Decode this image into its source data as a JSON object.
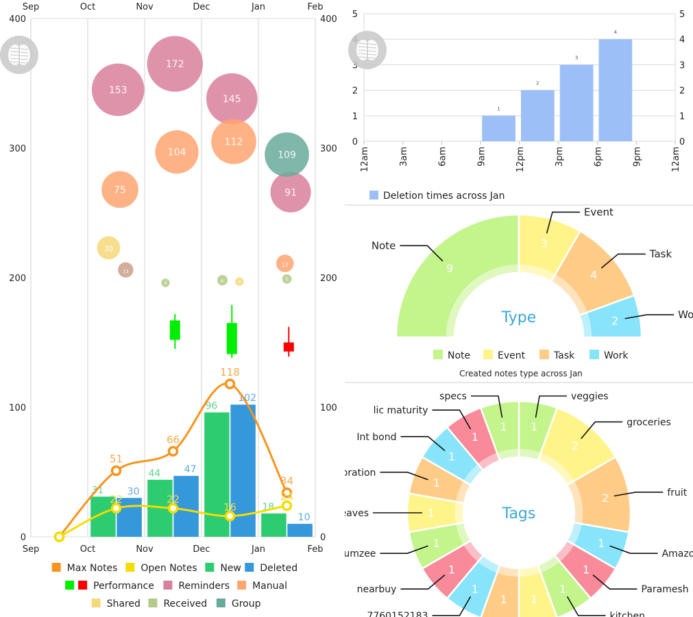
{
  "chart_data": [
    {
      "type": "combo",
      "x_axis": {
        "ticks": [
          "Sep",
          "Oct",
          "Nov",
          "Dec",
          "Jan",
          "Feb"
        ]
      },
      "y_axis": {
        "range": [
          0,
          400
        ],
        "ticks": [
          "0",
          "100",
          "200",
          "300",
          "400"
        ]
      },
      "grid": "vertical",
      "legend_placement": "bottom",
      "legend": [
        {
          "name": "Max Notes",
          "colors": [
            "#f7941d"
          ]
        },
        {
          "name": "Open Notes",
          "colors": [
            "#f5dc00"
          ]
        },
        {
          "name": "New",
          "colors": [
            "#2ecc71"
          ]
        },
        {
          "name": "Deleted",
          "colors": [
            "#3498db"
          ]
        },
        {
          "name": "Performance",
          "colors": [
            "#00ee00",
            "#ff0000"
          ]
        },
        {
          "name": "Reminders",
          "colors": [
            "#d9809c"
          ]
        },
        {
          "name": "Manual",
          "colors": [
            "#ffa570"
          ]
        },
        {
          "name": "Shared",
          "colors": [
            "#f5d87a"
          ]
        },
        {
          "name": "Received",
          "colors": [
            "#b5c98a"
          ]
        },
        {
          "name": "Group",
          "colors": [
            "#6aaa9c"
          ]
        }
      ],
      "bars": {
        "categories": [
          "Oct",
          "Nov",
          "Dec",
          "Jan"
        ],
        "series": [
          {
            "name": "New",
            "color": "#2ecc71",
            "label_color": "#5fd38d",
            "values": [
              31,
              44,
              96,
              18
            ]
          },
          {
            "name": "Deleted",
            "color": "#3498db",
            "label_color": "#5aa9e0",
            "values": [
              30,
              47,
              102,
              10
            ]
          }
        ]
      },
      "lines": {
        "x": [
          "Sep",
          "Oct",
          "Nov",
          "Dec",
          "Jan"
        ],
        "series": [
          {
            "name": "Max Notes",
            "color": "#f7941d",
            "label_color": "#f5a94a",
            "values": [
              0,
              51,
              66,
              118,
              34
            ]
          },
          {
            "name": "Open Notes",
            "color": "#f5dc00",
            "label_color": "#f2d94a",
            "values": [
              0,
              22,
              22,
              16,
              24
            ]
          }
        ]
      },
      "candles": {
        "name": "Performance",
        "points": [
          {
            "x": "Nov 16",
            "open": 152,
            "close": 167,
            "high": 172,
            "low": 145,
            "color": "#00ee00"
          },
          {
            "x": "Dec 16",
            "open": 141,
            "close": 165,
            "high": 179,
            "low": 138,
            "color": "#00ee00"
          },
          {
            "x": "Jan 16",
            "open": 150,
            "close": 143,
            "high": 162,
            "low": 139,
            "color": "#ff0000"
          }
        ]
      },
      "bubbles": [
        {
          "series": "Reminders",
          "x": "Oct 16",
          "y": 345,
          "size": 153,
          "color": "#d9809c"
        },
        {
          "series": "Reminders",
          "x": "Nov 16",
          "y": 365,
          "size": 172,
          "color": "#d9809c"
        },
        {
          "series": "Reminders",
          "x": "Dec 16",
          "y": 338,
          "size": 145,
          "color": "#d9809c"
        },
        {
          "series": "Reminders",
          "x": "Jan 17",
          "y": 266,
          "size": 91,
          "color": "#d9809c"
        },
        {
          "series": "Manual",
          "x": "Oct 17",
          "y": 268,
          "size": 75,
          "color": "#ffa570"
        },
        {
          "series": "Manual",
          "x": "Nov 17",
          "y": 297,
          "size": 104,
          "color": "#ffa570"
        },
        {
          "series": "Manual",
          "x": "Dec 17",
          "y": 305,
          "size": 112,
          "color": "#ffa570"
        },
        {
          "series": "Manual",
          "x": "Jan 14",
          "y": 211,
          "size": 17,
          "color": "#ffa570"
        },
        {
          "series": "Group",
          "x": "Jan 15",
          "y": 295,
          "size": 109,
          "color": "#6aaa9c"
        },
        {
          "series": "Shared",
          "x": "Oct 11",
          "y": 223,
          "size": 30,
          "color": "#f5d87a"
        },
        {
          "series": "Received",
          "x": "Oct 20",
          "y": 206,
          "size": 13,
          "color": "#c9a088"
        },
        {
          "series": "Received",
          "x": "Nov 11",
          "y": 196,
          "size": 4,
          "color": "#b5c98a"
        },
        {
          "series": "Received",
          "x": "Dec 11",
          "y": 198,
          "size": 6,
          "color": "#b5c98a"
        },
        {
          "series": "Shared",
          "x": "Dec 20",
          "y": 197,
          "size": 4,
          "color": "#f5d87a"
        },
        {
          "series": "Received",
          "x": "Jan 15",
          "y": 199,
          "size": 5,
          "color": "#b5c98a"
        }
      ]
    },
    {
      "type": "bar",
      "x_axis": {
        "ticks": [
          "12am",
          "3am",
          "6am",
          "9am",
          "12pm",
          "3pm",
          "6pm",
          "9pm",
          "12am"
        ]
      },
      "y_axis": {
        "range": [
          0,
          5
        ],
        "ticks": [
          "0",
          "1",
          "2",
          "3",
          "4",
          "5"
        ]
      },
      "grid": "horizontal",
      "color": "#9dbff7",
      "legend": "Deletion times across Jan",
      "legend_placement": "bottom-left",
      "bars": [
        {
          "from": "9am",
          "to": "12pm",
          "value": 1
        },
        {
          "from": "12pm",
          "to": "3pm",
          "value": 2
        },
        {
          "from": "3pm",
          "to": "6pm",
          "value": 3
        },
        {
          "from": "6pm",
          "to": "9pm",
          "value": 4
        }
      ]
    },
    {
      "type": "pie",
      "variant": "half-donut",
      "center_label": "Type",
      "caption": "Created notes type across Jan",
      "legend_placement": "bottom",
      "slices": [
        {
          "label": "Note",
          "value": 9,
          "color": "#c4f48c"
        },
        {
          "label": "Event",
          "value": 3,
          "color": "#fff48a"
        },
        {
          "label": "Task",
          "value": 4,
          "color": "#ffcc88"
        },
        {
          "label": "Work",
          "value": 2,
          "color": "#88e4fa"
        }
      ]
    },
    {
      "type": "pie",
      "variant": "donut",
      "center_label": "Tags",
      "slices": [
        {
          "label": "veggies",
          "value": 1,
          "color": "#c4f48c"
        },
        {
          "label": "groceries",
          "value": 2,
          "color": "#fff48a"
        },
        {
          "label": "fruit",
          "value": 2,
          "color": "#ffcc88"
        },
        {
          "label": "Amazon A",
          "value": 1,
          "color": "#88e4fa"
        },
        {
          "label": "Paramesh",
          "value": 1,
          "color": "#f98a99"
        },
        {
          "label": "kitchen",
          "value": 1,
          "color": "#c4f48c"
        },
        {
          "label": "",
          "value": 1,
          "color": "#fff48a"
        },
        {
          "label": "",
          "value": 1,
          "color": "#ffcc88"
        },
        {
          "label": "7760152183",
          "value": 1,
          "color": "#88e4fa"
        },
        {
          "label": "nearbuy",
          "value": 1,
          "color": "#f98a99"
        },
        {
          "label": "Mumzee",
          "value": 1,
          "color": "#c4f48c"
        },
        {
          "label": "paid leaves",
          "value": 1,
          "color": "#fff48a"
        },
        {
          "label": "celebration",
          "value": 1,
          "color": "#ffcc88"
        },
        {
          "label": "Int bond",
          "value": 1,
          "color": "#88e4fa"
        },
        {
          "label": "lic maturity",
          "value": 1,
          "color": "#f98a99"
        },
        {
          "label": "specs",
          "value": 1,
          "color": "#c4f48c"
        }
      ]
    }
  ],
  "icons": {
    "app_badge": "brain-icon"
  }
}
